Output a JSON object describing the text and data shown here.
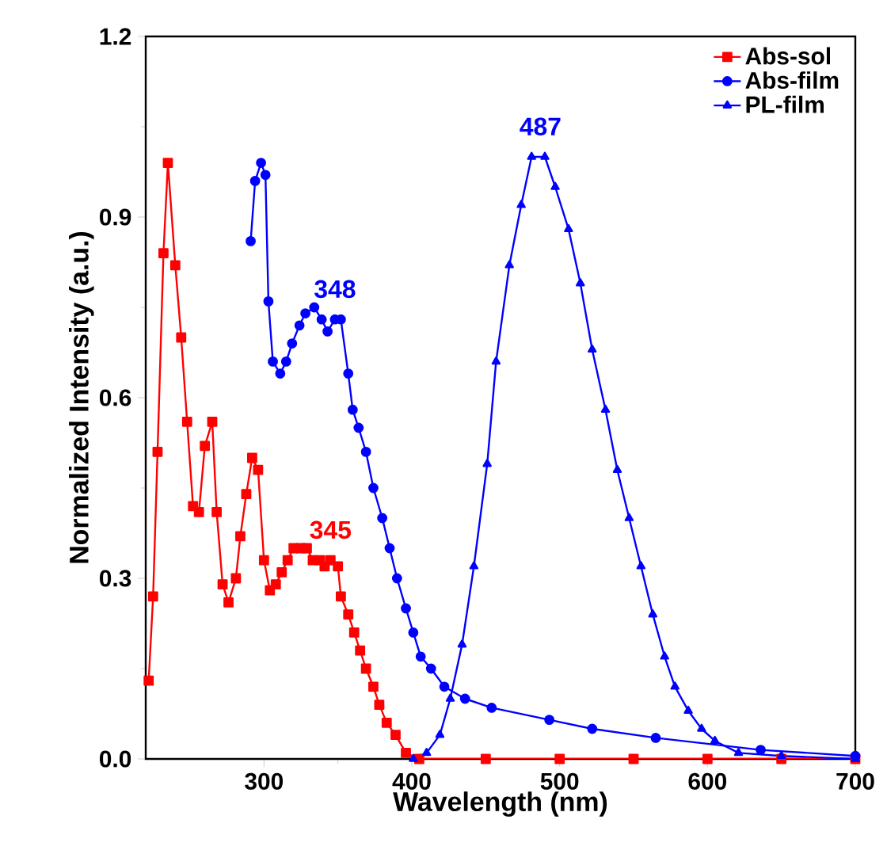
{
  "chart_data": {
    "type": "line",
    "xlabel": "Wavelength (nm)",
    "ylabel": "Normalized Intensity (a.u.)",
    "xlim": [
      220,
      700
    ],
    "xticks": [
      300,
      400,
      500,
      600,
      700
    ],
    "ylim": [
      0,
      1.2
    ],
    "yticks": [
      {
        "value": 0,
        "label": "0.0"
      },
      {
        "value": 0.3,
        "label": "0.3"
      },
      {
        "value": 0.6,
        "label": "0.6"
      },
      {
        "value": 0.9,
        "label": "0.9"
      },
      {
        "value": 1.2,
        "label": "1.2"
      }
    ],
    "legend": "top right",
    "grid": false,
    "line_style": "solid",
    "annotations": [
      {
        "text": "345",
        "x": 345,
        "y": 0.33
      },
      {
        "text": "348",
        "x": 348,
        "y": 0.73
      },
      {
        "text": "487",
        "x": 487,
        "y": 1.0
      }
    ],
    "series": [
      {
        "name": "Abs-sol",
        "color": "#ff0000",
        "marker": "square",
        "x": [
          222,
          225,
          228,
          232,
          235,
          240,
          244,
          248,
          252,
          256,
          260,
          265,
          268,
          272,
          276,
          281,
          284,
          288,
          292,
          296,
          300,
          304,
          308,
          312,
          316,
          320,
          325,
          329,
          333,
          338,
          341,
          345,
          350,
          352,
          357,
          361,
          365,
          369,
          374,
          378,
          383,
          389,
          396,
          405,
          450,
          500,
          550,
          600,
          650,
          700
        ],
        "values": [
          0.13,
          0.27,
          0.51,
          0.84,
          0.99,
          0.82,
          0.7,
          0.56,
          0.42,
          0.41,
          0.52,
          0.56,
          0.41,
          0.29,
          0.26,
          0.3,
          0.37,
          0.44,
          0.5,
          0.48,
          0.33,
          0.28,
          0.29,
          0.31,
          0.33,
          0.35,
          0.35,
          0.35,
          0.33,
          0.33,
          0.32,
          0.33,
          0.32,
          0.27,
          0.24,
          0.21,
          0.18,
          0.15,
          0.12,
          0.09,
          0.06,
          0.04,
          0.01,
          0.0,
          0.0,
          0.0,
          0.0,
          0.0,
          0.0,
          0.0
        ]
      },
      {
        "name": "Abs-film",
        "color": "#0000ff",
        "marker": "circle",
        "x": [
          291,
          294,
          298,
          301,
          303,
          306,
          311,
          315,
          319,
          324,
          328,
          334,
          339,
          343,
          348,
          352,
          357,
          360,
          364,
          369,
          374,
          380,
          385,
          390,
          396,
          401,
          406,
          413,
          422,
          436,
          454,
          493,
          522,
          565,
          636,
          700
        ],
        "values": [
          0.86,
          0.96,
          0.99,
          0.97,
          0.76,
          0.66,
          0.64,
          0.66,
          0.69,
          0.72,
          0.74,
          0.75,
          0.73,
          0.71,
          0.73,
          0.73,
          0.64,
          0.58,
          0.55,
          0.51,
          0.45,
          0.4,
          0.35,
          0.3,
          0.25,
          0.21,
          0.17,
          0.15,
          0.12,
          0.1,
          0.085,
          0.065,
          0.05,
          0.035,
          0.015,
          0.005
        ]
      },
      {
        "name": "PL-film",
        "color": "#0000ff",
        "marker": "triangle",
        "x": [
          401,
          410,
          419,
          426,
          434,
          442,
          451,
          457,
          466,
          474,
          481,
          490,
          497,
          506,
          514,
          522,
          531,
          539,
          547,
          555,
          563,
          571,
          578,
          587,
          596,
          605,
          621,
          650,
          700
        ],
        "values": [
          0.0,
          0.01,
          0.04,
          0.1,
          0.19,
          0.32,
          0.49,
          0.66,
          0.82,
          0.92,
          1.0,
          1.0,
          0.95,
          0.88,
          0.79,
          0.68,
          0.58,
          0.48,
          0.4,
          0.32,
          0.24,
          0.17,
          0.12,
          0.08,
          0.05,
          0.03,
          0.01,
          0.005,
          0.0
        ]
      }
    ]
  }
}
